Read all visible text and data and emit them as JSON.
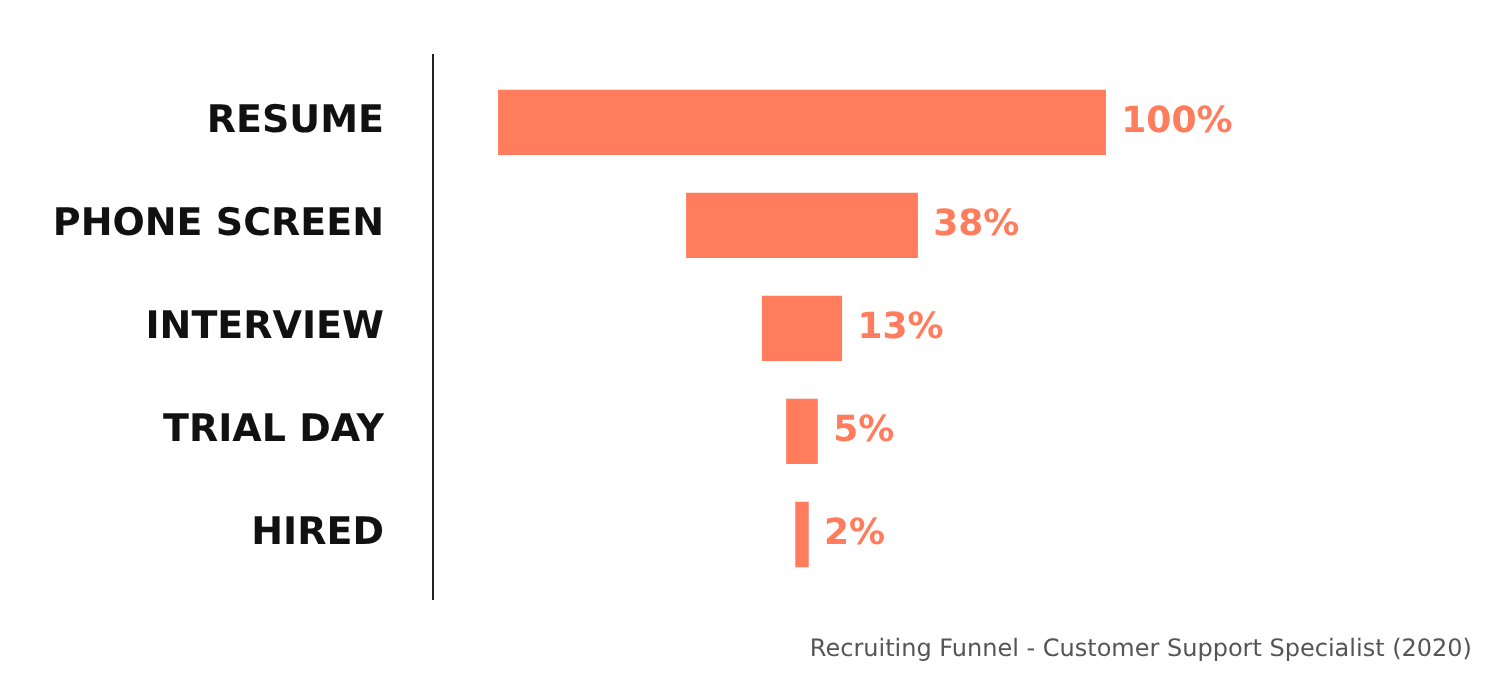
{
  "chart_data": {
    "type": "other",
    "categories": [
      "RESUME",
      "PHONE SCREEN",
      "INTERVIEW",
      "TRIAL DAY",
      "HIRED"
    ],
    "values": [
      100,
      38,
      13,
      5,
      2
    ],
    "value_labels": [
      "100%",
      "38%",
      "13%",
      "5%",
      "2%"
    ],
    "color": "#ff7d5c",
    "annotations": [
      "Recruiting Funnel - Customer Support Specialist (2020)"
    ]
  }
}
